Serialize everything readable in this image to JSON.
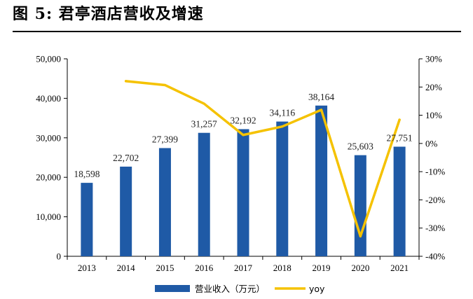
{
  "figure": {
    "title": "图 5: 君亭酒店营收及增速"
  },
  "colors": {
    "bar": "#1f5aa6",
    "line": "#f5c200",
    "axis": "#000000"
  },
  "chart_data": {
    "type": "bar",
    "categories": [
      "2013",
      "2014",
      "2015",
      "2016",
      "2017",
      "2018",
      "2019",
      "2020",
      "2021"
    ],
    "series": [
      {
        "name": "营业收入（万元）",
        "type": "bar",
        "axis": "left",
        "values": [
          18598,
          22702,
          27399,
          31257,
          32192,
          34116,
          38164,
          25603,
          27751
        ],
        "labels": [
          "18,598",
          "22,702",
          "27,399",
          "31,257",
          "32,192",
          "34,116",
          "38,164",
          "25,603",
          "27,751"
        ]
      },
      {
        "name": "yoy",
        "type": "line",
        "axis": "right",
        "values": [
          null,
          22.1,
          20.7,
          14.1,
          3.0,
          6.0,
          11.9,
          -32.9,
          8.4
        ]
      }
    ],
    "left_axis": {
      "ylim": [
        0,
        50000
      ],
      "ticks": [
        "0",
        "10,000",
        "20,000",
        "30,000",
        "40,000",
        "50,000"
      ]
    },
    "right_axis": {
      "ylim": [
        -40,
        30
      ],
      "ticks": [
        "-40%",
        "-30%",
        "-20%",
        "-10%",
        "0%",
        "10%",
        "20%",
        "30%"
      ]
    },
    "legend": {
      "position": "bottom",
      "items": [
        "营业收入（万元）",
        "yoy"
      ]
    },
    "grid": false
  }
}
